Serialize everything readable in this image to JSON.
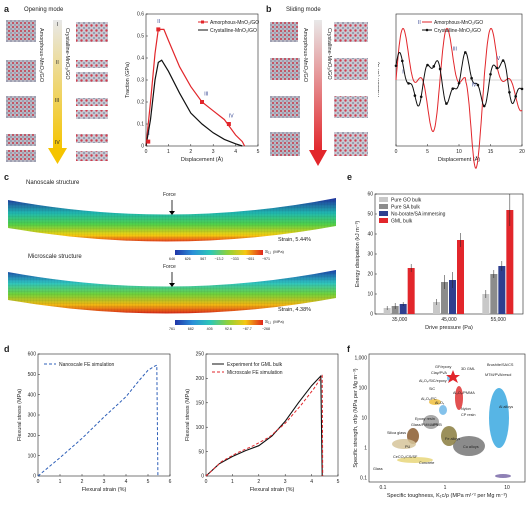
{
  "panels": {
    "a": {
      "letter": "a",
      "mode_title": "Opening mode",
      "left_label": "Amorphous-MnO₂/GO",
      "right_label": "Crystalline-MnO₂/GO",
      "stage_marks": [
        "I",
        "II",
        "III",
        "IV"
      ],
      "chart": {
        "type": "line",
        "xlabel": "Displacement (Å)",
        "ylabel": "Traction (GPa)",
        "xlim": [
          0,
          5
        ],
        "ylim": [
          0,
          0.6
        ],
        "xticks": [
          "0",
          "1",
          "2",
          "3",
          "4",
          "5"
        ],
        "yticks": [
          "0",
          "0.1",
          "0.2",
          "0.3",
          "0.4",
          "0.5",
          "0.6"
        ],
        "legend": [
          "Amorphous-MnO₂/GO",
          "Crystalline-MnO₂/GO"
        ],
        "roman": [
          "I",
          "II",
          "III",
          "IV"
        ]
      }
    },
    "b": {
      "letter": "b",
      "mode_title": "Sliding mode",
      "left_label": "Amorphous-MnO₂/GO",
      "right_label": "Crystalline-MnO₂/GO",
      "chart": {
        "type": "line",
        "xlabel": "Displacement (Å)",
        "ylabel": "Traction (GPa)",
        "xlim": [
          0,
          20
        ],
        "xticks": [
          "0",
          "5",
          "10",
          "15",
          "20"
        ],
        "legend": [
          "Amorphous-MnO₂/GO",
          "Crystalline-MnO₂/GO"
        ],
        "roman": [
          "I",
          "II",
          "III",
          "IV",
          "V"
        ]
      }
    },
    "c": {
      "letter": "c",
      "nano_title": "Nanoscale structure",
      "micro_title": "Microscale structure",
      "force": "Force",
      "strain_nano": "Strain, 5.44%",
      "strain_micro": "Strain, 4.38%",
      "cb1_ticks": [
        "646",
        "626",
        "567",
        "−13.2",
        "−333",
        "−651",
        "−971"
      ],
      "cb1_unit": "(MPa)",
      "cb2_ticks": [
        "761",
        "682",
        "405",
        "92.6",
        "−87.7",
        "−268"
      ],
      "cb2_unit": "(MPa)",
      "sigma": "S₁₁"
    },
    "e": {
      "letter": "e",
      "chart_data": {
        "type": "bar",
        "categories": [
          "35,000",
          "45,000",
          "55,000"
        ],
        "xlabel": "Drive pressure (Pa)",
        "ylabel": "Energy dissipation (kJ m⁻³)",
        "ylim": [
          0,
          60
        ],
        "yticks": [
          "0",
          "10",
          "20",
          "30",
          "40",
          "50",
          "60"
        ],
        "series": [
          {
            "name": "Pure GO bulk",
            "color": "#c8c8c8",
            "values": [
              3,
              6,
              10
            ]
          },
          {
            "name": "Pure SA bulk",
            "color": "#8c8c8c",
            "values": [
              4,
              16,
              20
            ]
          },
          {
            "name": "No-borate/SA immersing",
            "color": "#2e3f8f",
            "values": [
              5,
              17,
              24
            ]
          },
          {
            "name": "GML bulk",
            "color": "#e2262b",
            "values": [
              23,
              37,
              52
            ]
          }
        ],
        "errors": [
          [
            1,
            1.5,
            2
          ],
          [
            1.5,
            3.5,
            2
          ],
          [
            1,
            4,
            2.5
          ],
          [
            2,
            3.5,
            8
          ]
        ]
      }
    },
    "d": {
      "letter": "d",
      "left_chart": {
        "type": "line",
        "xlabel": "Flexural strain (%)",
        "ylabel": "Flexural stress (MPa)",
        "xlim": [
          0,
          6
        ],
        "ylim": [
          0,
          600
        ],
        "xticks": [
          "0",
          "1",
          "2",
          "3",
          "4",
          "5",
          "6"
        ],
        "yticks": [
          "0",
          "100",
          "200",
          "300",
          "400",
          "500",
          "600"
        ],
        "legend": [
          "Nanoscale FE simulation"
        ]
      },
      "right_chart": {
        "type": "line",
        "xlabel": "Flexural strain (%)",
        "ylabel": "Flexural stress (MPa)",
        "xlim": [
          0,
          5
        ],
        "ylim": [
          0,
          250
        ],
        "xticks": [
          "0",
          "1",
          "2",
          "3",
          "4",
          "5"
        ],
        "yticks": [
          "0",
          "50",
          "100",
          "150",
          "200",
          "250"
        ],
        "legend": [
          "Experiment for GML bulk",
          "Microscale FE simulation"
        ]
      }
    },
    "f": {
      "letter": "f",
      "xlabel": "Specific toughness, K₁c/ρ (MPa m¹ᐟ² per Mg m⁻³)",
      "ylabel": "Specific strength, σf/ρ (MPa per Mg m⁻³)",
      "xticks": [
        "0.1",
        "1",
        "10"
      ],
      "yticks": [
        "0.1",
        "1",
        "10",
        "100",
        "1,000"
      ],
      "labels": [
        "GF/epoxy",
        "Clay/PVA",
        "3D GML",
        "Al₂O₃/SiC/epoxy",
        "SiC",
        "Al₂O₃/PMMA",
        "Al₂O₃/PC",
        "Al₂O₃",
        "Nylon",
        "CP resin",
        "Glass/PMMA/PVB",
        "Epoxy resin",
        "PS",
        "Fe alloys",
        "Cu alloys",
        "Al alloys",
        "Silica glass",
        "PU",
        "Glass",
        "CeCO₃/CS/SF",
        "Concrete",
        "Brushite/SA/CS",
        "MTM/PVA/resol"
      ]
    }
  }
}
